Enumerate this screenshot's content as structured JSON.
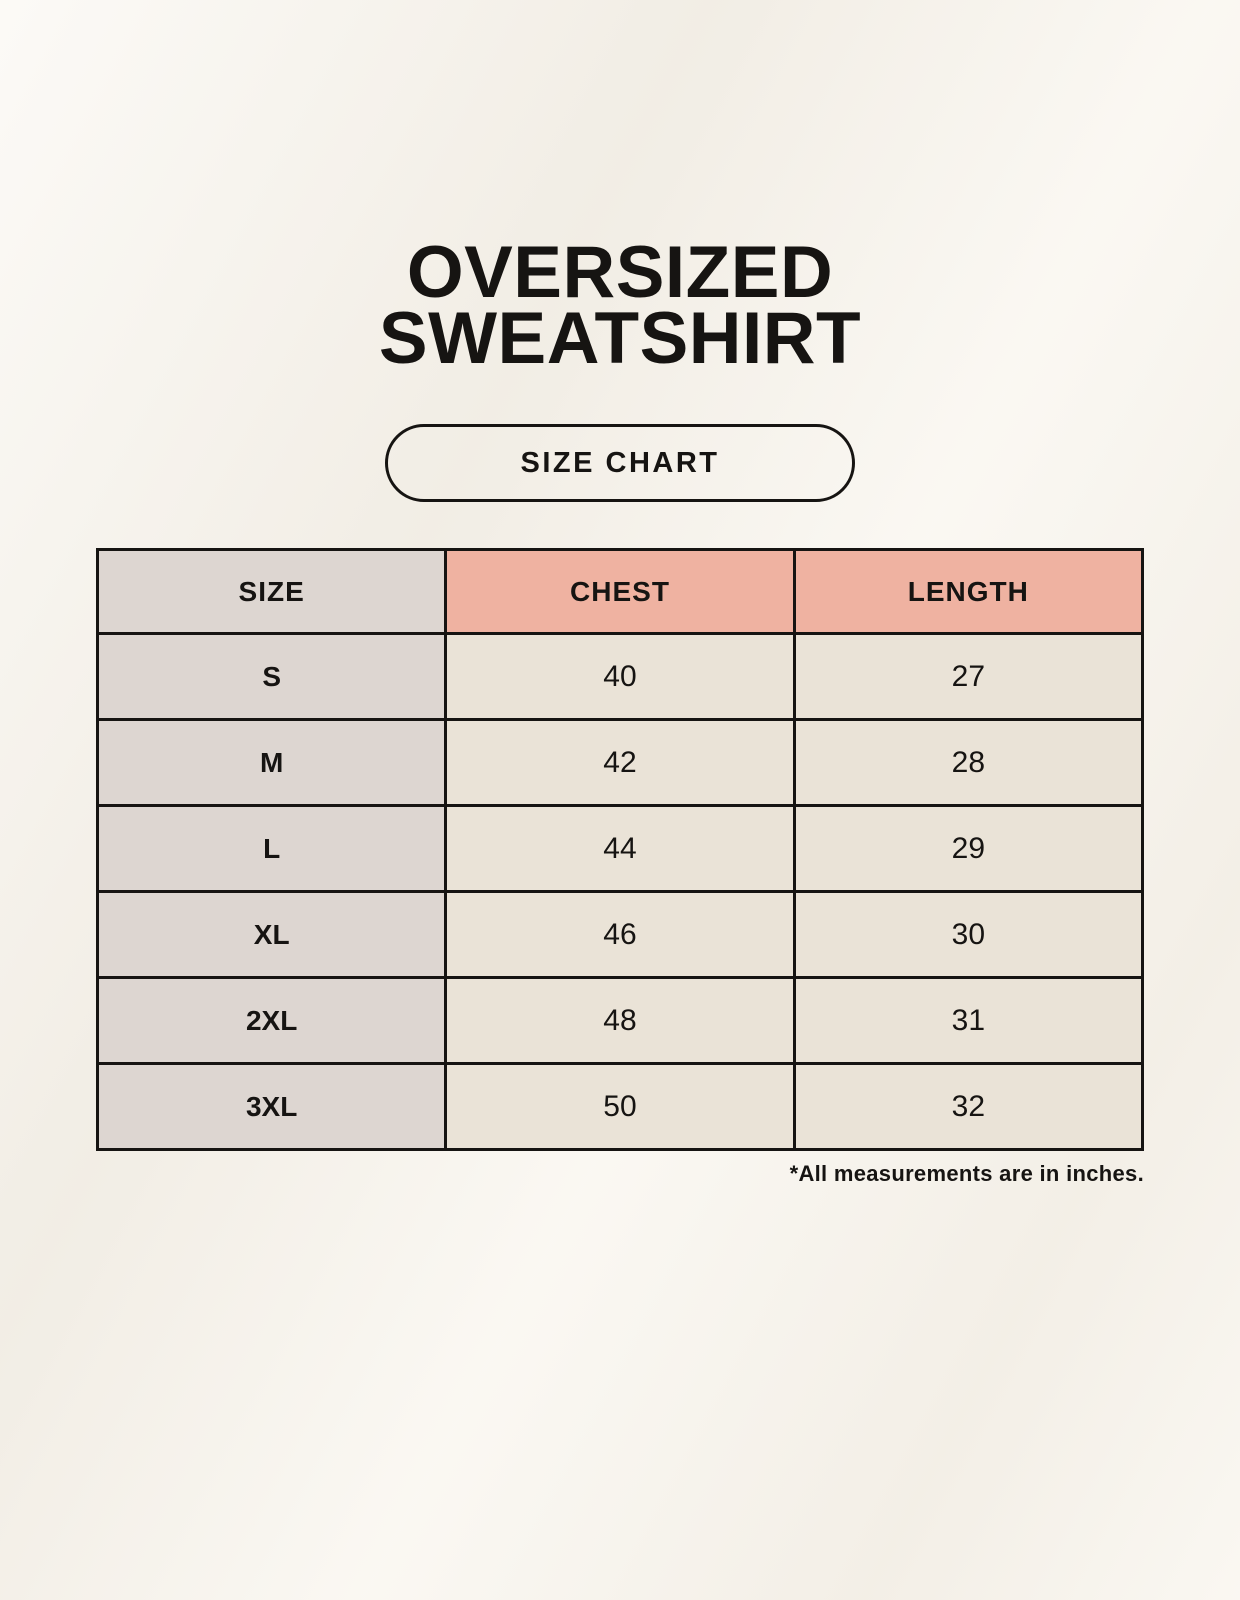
{
  "page": {
    "title_line1": "OVERSIZED",
    "title_line2": "SWEATSHIRT",
    "badge_label": "SIZE CHART",
    "footnote": "*All measurements are in inches."
  },
  "colors": {
    "background": "#f8f4ec",
    "size_column_bg": "#ddd6d1",
    "measure_header_bg": "#efb2a1",
    "value_cell_bg": "#eae3d7",
    "border": "#161412",
    "text": "#161412"
  },
  "chart_data": {
    "type": "table",
    "title": "Oversized Sweatshirt Size Chart",
    "units": "inches",
    "columns": [
      "SIZE",
      "CHEST",
      "LENGTH"
    ],
    "rows": [
      [
        "S",
        "40",
        "27"
      ],
      [
        "M",
        "42",
        "28"
      ],
      [
        "L",
        "44",
        "29"
      ],
      [
        "XL",
        "46",
        "30"
      ],
      [
        "2XL",
        "48",
        "31"
      ],
      [
        "3XL",
        "50",
        "32"
      ]
    ]
  }
}
